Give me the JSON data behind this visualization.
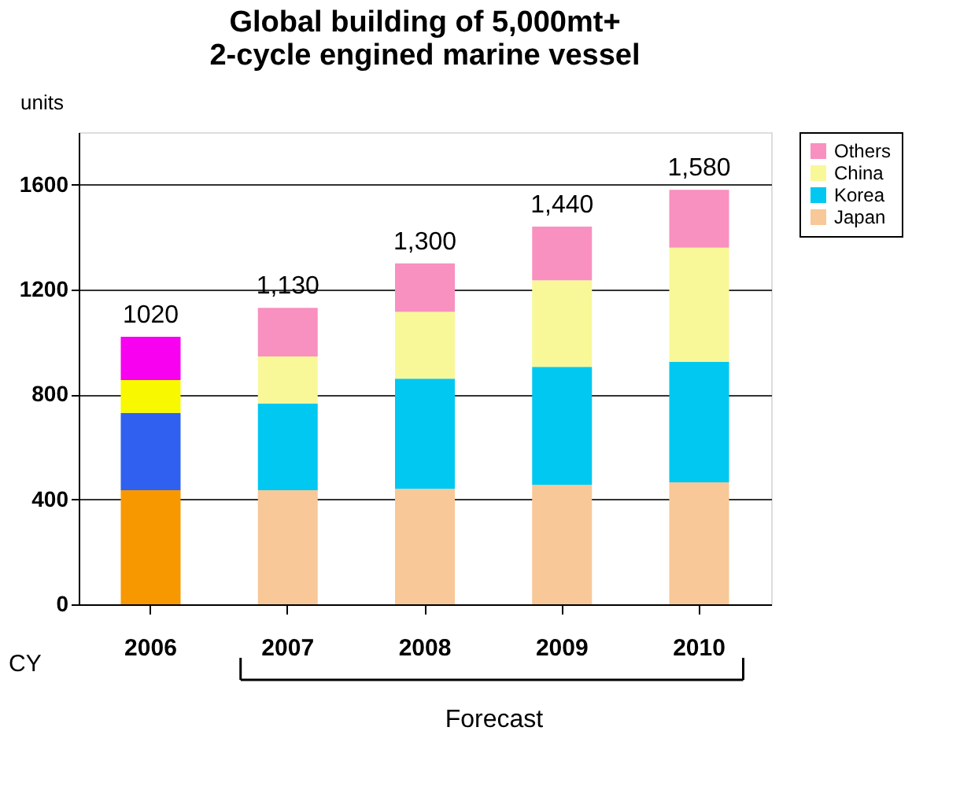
{
  "chart_data": {
    "type": "bar",
    "stacked": true,
    "title": [
      "Global building of 5,000mt+",
      "2-cycle engined marine vessel"
    ],
    "xlabel": "CY",
    "ylabel": "units",
    "categories": [
      "2006",
      "2007",
      "2008",
      "2009",
      "2010"
    ],
    "series": [
      {
        "name": "Japan",
        "color": "#f8c898",
        "colors": [
          "#f89800",
          "#f8c898",
          "#f8c898",
          "#f8c898",
          "#f8c898"
        ],
        "values": [
          435,
          435,
          440,
          455,
          465
        ]
      },
      {
        "name": "Korea",
        "color": "#00c8f0",
        "colors": [
          "#3060f0",
          "#00c8f0",
          "#00c8f0",
          "#00c8f0",
          "#00c8f0"
        ],
        "values": [
          295,
          330,
          420,
          450,
          460
        ]
      },
      {
        "name": "China",
        "color": "#f8f898",
        "colors": [
          "#f8f800",
          "#f8f898",
          "#f8f898",
          "#f8f898",
          "#f8f898"
        ],
        "values": [
          125,
          180,
          255,
          330,
          435
        ]
      },
      {
        "name": "Others",
        "color": "#f890c0",
        "colors": [
          "#f800f0",
          "#f890c0",
          "#f890c0",
          "#f890c0",
          "#f890c0"
        ],
        "values": [
          165,
          185,
          185,
          205,
          220
        ]
      }
    ],
    "totals": [
      "1020",
      "1,130",
      "1,300",
      "1,440",
      "1,580"
    ],
    "ylim": [
      0,
      1800
    ],
    "yticks": [
      0,
      400,
      800,
      1200,
      1600
    ],
    "grid": "y",
    "legend": "right",
    "annotations": [
      "Forecast"
    ]
  }
}
